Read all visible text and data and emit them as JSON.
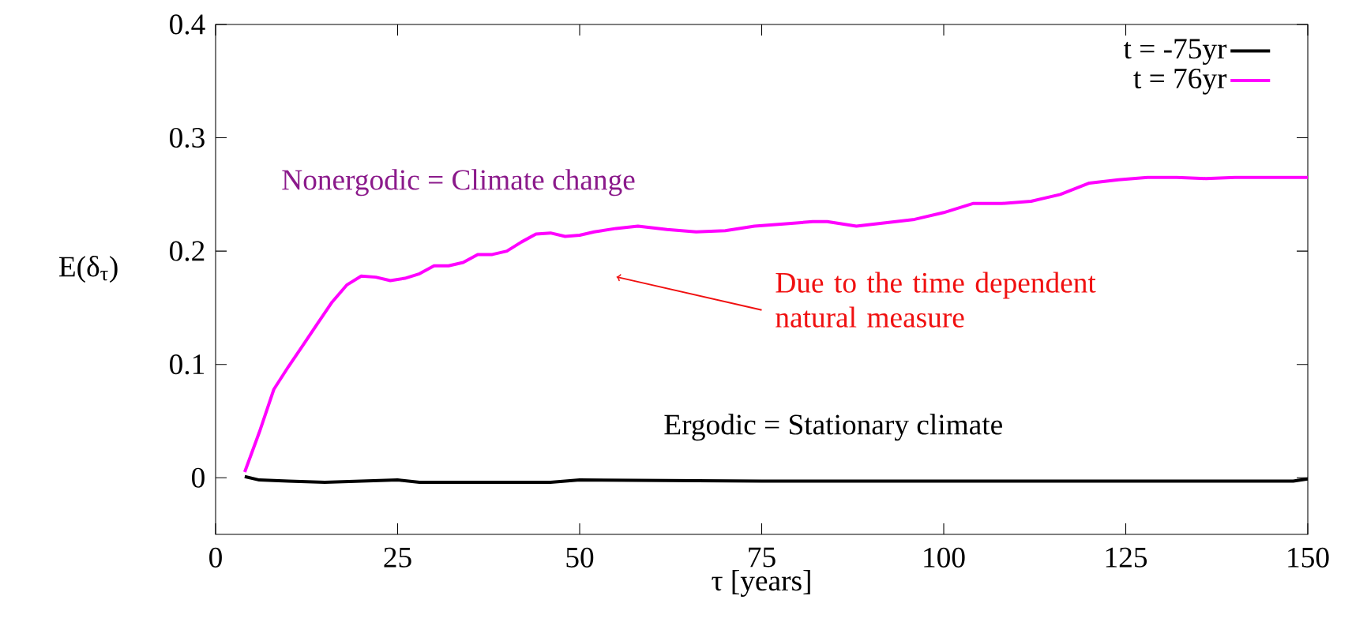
{
  "chart_data": {
    "type": "line",
    "xlabel": "τ [years]",
    "ylabel": "E(δ$_{τ}$)",
    "xlim": [
      0,
      150
    ],
    "ylim": [
      -0.05,
      0.4
    ],
    "xticks": [
      0,
      25,
      50,
      75,
      100,
      125,
      150
    ],
    "yticks": [
      0,
      0.1,
      0.2,
      0.3,
      0.4
    ],
    "legend": "top right",
    "grid": false,
    "series": [
      {
        "name": "t = -75yr",
        "color": "#000000",
        "x": [
          4,
          6,
          10,
          15,
          20,
          25,
          28,
          40,
          46,
          50,
          75,
          100,
          125,
          148,
          150
        ],
        "values": [
          0.001,
          -0.002,
          -0.003,
          -0.004,
          -0.003,
          -0.002,
          -0.004,
          -0.004,
          -0.004,
          -0.002,
          -0.003,
          -0.003,
          -0.003,
          -0.003,
          -0.001
        ]
      },
      {
        "name": "t = 76yr",
        "color": "#ff00ff",
        "x": [
          4,
          6,
          8,
          10,
          12,
          14,
          16,
          18,
          20,
          22,
          24,
          26,
          28,
          30,
          32,
          34,
          36,
          38,
          40,
          42,
          44,
          46,
          48,
          50,
          52,
          55,
          58,
          62,
          66,
          70,
          74,
          78,
          82,
          84,
          88,
          92,
          96,
          100,
          104,
          108,
          112,
          116,
          120,
          124,
          128,
          132,
          136,
          140,
          145,
          150
        ],
        "values": [
          0.005,
          0.04,
          0.078,
          0.098,
          0.117,
          0.136,
          0.155,
          0.17,
          0.178,
          0.177,
          0.174,
          0.176,
          0.18,
          0.187,
          0.187,
          0.19,
          0.197,
          0.197,
          0.2,
          0.208,
          0.215,
          0.216,
          0.213,
          0.214,
          0.217,
          0.22,
          0.222,
          0.219,
          0.217,
          0.218,
          0.222,
          0.224,
          0.226,
          0.226,
          0.222,
          0.225,
          0.228,
          0.234,
          0.242,
          0.242,
          0.244,
          0.25,
          0.26,
          0.263,
          0.265,
          0.265,
          0.264,
          0.265,
          0.265,
          0.265
        ]
      }
    ],
    "annotations": [
      "Nonergodic = Climate change",
      "Due to the time dependent natural measure",
      "Ergodic = Stationary climate"
    ]
  }
}
